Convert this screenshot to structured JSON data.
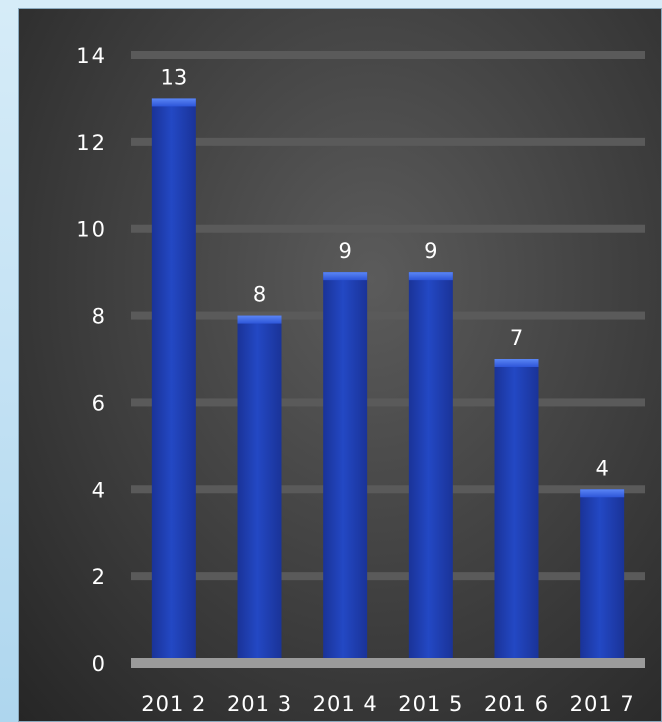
{
  "chart_data": {
    "type": "bar",
    "categories": [
      "2012",
      "2013",
      "2014",
      "2015",
      "2016",
      "2017"
    ],
    "values": [
      13,
      8,
      9,
      9,
      7,
      4
    ],
    "title": "",
    "xlabel": "",
    "ylabel": "",
    "ylim": [
      0,
      14
    ],
    "yticks": [
      0,
      2,
      4,
      6,
      8,
      10,
      12,
      14
    ],
    "ytick_labels": [
      "0",
      "2",
      "4",
      "6",
      "8",
      "10",
      "12",
      "14"
    ],
    "category_labels": [
      "201 2",
      "201 3",
      "201 4",
      "201 5",
      "201 6",
      "201 7"
    ],
    "data_labels": [
      "13",
      "8",
      "9",
      "9",
      "7",
      "4"
    ],
    "grid": true,
    "legend": "none",
    "colors": {
      "bar": "#1f3fb0",
      "bar_top": "#3b66e6",
      "gridline": "#5a5a5a",
      "baseline": "#9b9b9b",
      "text": "#ffffff"
    }
  }
}
